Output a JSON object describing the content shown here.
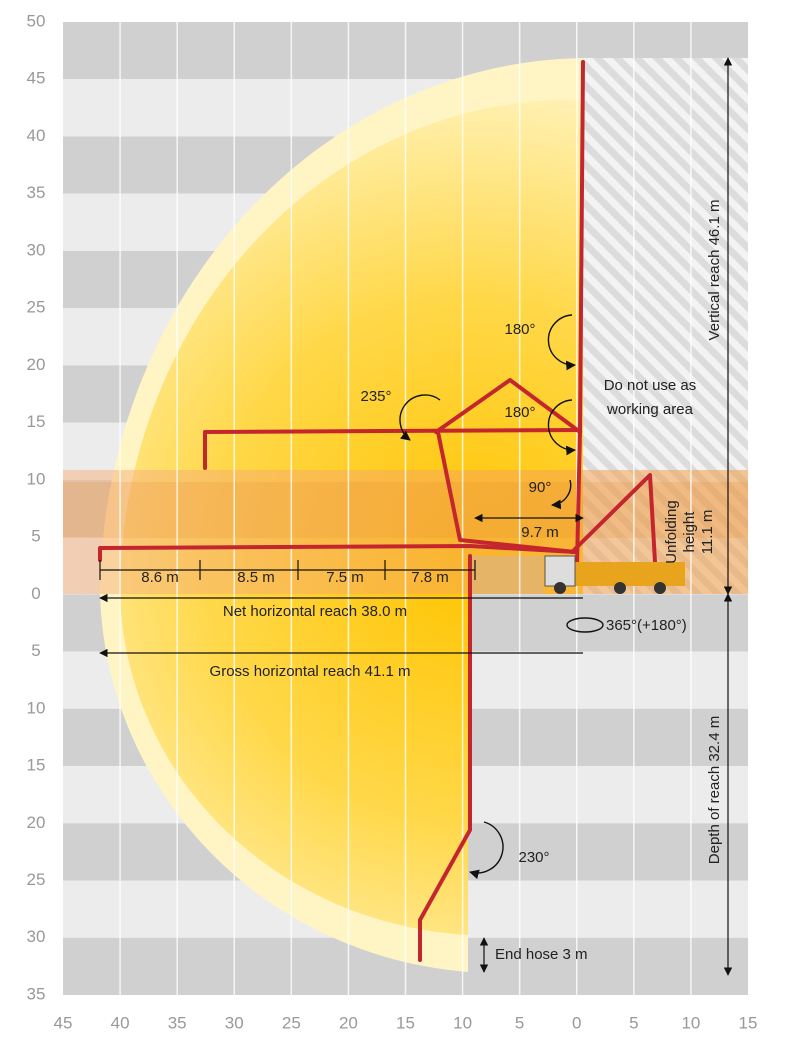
{
  "axes": {
    "x_labels": [
      "45",
      "40",
      "35",
      "30",
      "25",
      "20",
      "15",
      "10",
      "5",
      "0",
      "5",
      "10",
      "15"
    ],
    "y_labels": [
      "50",
      "45",
      "40",
      "35",
      "30",
      "25",
      "20",
      "15",
      "10",
      "5",
      "0",
      "5",
      "10",
      "15",
      "20",
      "25",
      "30",
      "35"
    ]
  },
  "dimensions": {
    "vertical_reach": "Vertical reach 46.1 m",
    "depth_of_reach": "Depth of reach 32.4 m",
    "unfolding_height": [
      "Unfolding",
      "height",
      "11.1 m"
    ],
    "segments": [
      "8.6 m",
      "8.5 m",
      "7.5 m",
      "7.8 m"
    ],
    "fold_reach": "9.7 m",
    "net_horizontal": "Net horizontal reach 38.0 m",
    "gross_horizontal": "Gross horizontal reach 41.1 m",
    "end_hose": "End hose 3 m"
  },
  "angles": {
    "top_joint": "180°",
    "second_arm": "235°",
    "mid_joint": "180°",
    "base_joint": "90°",
    "tip_joint": "230°",
    "slew": "365°(+180°)"
  },
  "zone": [
    "Do not use as",
    "working area"
  ]
}
